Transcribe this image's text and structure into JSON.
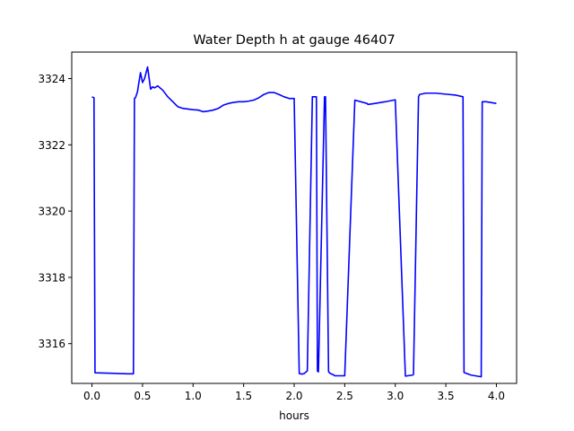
{
  "chart_data": {
    "type": "line",
    "title": "Water Depth h at gauge 46407",
    "xlabel": "hours",
    "ylabel": "",
    "xlim": [
      -0.2,
      4.2
    ],
    "ylim": [
      3314.8,
      3324.8
    ],
    "xticks": [
      0.0,
      0.5,
      1.0,
      1.5,
      2.0,
      2.5,
      3.0,
      3.5,
      4.0
    ],
    "xtick_labels": [
      "0.0",
      "0.5",
      "1.0",
      "1.5",
      "2.0",
      "2.5",
      "3.0",
      "3.5",
      "4.0"
    ],
    "yticks": [
      3316,
      3318,
      3320,
      3322,
      3324
    ],
    "ytick_labels": [
      "3316",
      "3318",
      "3320",
      "3322",
      "3324"
    ],
    "grid": false,
    "line_color": "#0000ff",
    "series": [
      {
        "name": "",
        "x": [
          0.0,
          0.02,
          0.03,
          0.15,
          0.25,
          0.35,
          0.41,
          0.42,
          0.43,
          0.45,
          0.46,
          0.48,
          0.5,
          0.52,
          0.55,
          0.58,
          0.6,
          0.62,
          0.65,
          0.7,
          0.75,
          0.8,
          0.85,
          0.9,
          0.95,
          1.0,
          1.05,
          1.1,
          1.15,
          1.2,
          1.25,
          1.3,
          1.35,
          1.4,
          1.45,
          1.5,
          1.55,
          1.6,
          1.65,
          1.7,
          1.75,
          1.8,
          1.85,
          1.9,
          1.95,
          2.0,
          2.05,
          2.08,
          2.09,
          2.1,
          2.13,
          2.18,
          2.22,
          2.23,
          2.24,
          2.3,
          2.31,
          2.34,
          2.35,
          2.36,
          2.37,
          2.38,
          2.39,
          2.4,
          2.45,
          2.5,
          2.6,
          2.72,
          2.73,
          2.8,
          2.9,
          3.0,
          3.1,
          3.17,
          3.18,
          3.23,
          3.24,
          3.3,
          3.4,
          3.5,
          3.6,
          3.67,
          3.68,
          3.75,
          3.85,
          3.86,
          3.9,
          4.0
        ],
        "y": [
          3323.45,
          3323.42,
          3315.12,
          3315.11,
          3315.1,
          3315.09,
          3315.09,
          3323.4,
          3323.42,
          3323.6,
          3323.8,
          3324.18,
          3323.88,
          3324.0,
          3324.35,
          3323.68,
          3323.75,
          3323.72,
          3323.78,
          3323.65,
          3323.45,
          3323.3,
          3323.15,
          3323.1,
          3323.08,
          3323.06,
          3323.05,
          3323.0,
          3323.02,
          3323.05,
          3323.1,
          3323.2,
          3323.25,
          3323.28,
          3323.3,
          3323.3,
          3323.32,
          3323.35,
          3323.42,
          3323.52,
          3323.58,
          3323.58,
          3323.52,
          3323.45,
          3323.4,
          3323.4,
          3315.1,
          3315.08,
          3315.09,
          3315.1,
          3315.18,
          3323.45,
          3323.45,
          3315.17,
          3315.15,
          3323.45,
          3323.45,
          3315.15,
          3315.12,
          3315.1,
          3315.08,
          3315.07,
          3315.06,
          3315.03,
          3315.03,
          3315.03,
          3323.35,
          3323.25,
          3323.22,
          3323.25,
          3323.3,
          3323.36,
          3315.02,
          3315.05,
          3315.07,
          3323.45,
          3323.52,
          3323.56,
          3323.56,
          3323.53,
          3323.5,
          3323.45,
          3315.13,
          3315.05,
          3315.0,
          3323.3,
          3323.3,
          3323.25
        ]
      }
    ]
  }
}
